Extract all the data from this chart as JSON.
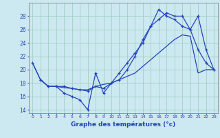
{
  "xlabel": "Graphe des températures (°c)",
  "background_color": "#cce8f0",
  "grid_color": "#99ccbb",
  "line_color": "#2244bb",
  "ylim": [
    13.5,
    30.0
  ],
  "xlim": [
    -0.5,
    23.5
  ],
  "yticks": [
    14,
    16,
    18,
    20,
    22,
    24,
    26,
    28
  ],
  "xticks": [
    0,
    1,
    2,
    3,
    4,
    5,
    6,
    7,
    8,
    9,
    10,
    11,
    12,
    13,
    14,
    15,
    16,
    17,
    18,
    19,
    20,
    21,
    22,
    23
  ],
  "line1_x": [
    0,
    1,
    2,
    3,
    4,
    5,
    6,
    7,
    8,
    9,
    10,
    11,
    12,
    13,
    14,
    15,
    16,
    17,
    18,
    19,
    20,
    21,
    22,
    23
  ],
  "line1_y": [
    21.0,
    18.5,
    17.5,
    17.5,
    16.5,
    16.0,
    15.5,
    14.0,
    19.5,
    16.5,
    18.0,
    18.5,
    20.0,
    22.0,
    24.5,
    26.5,
    29.0,
    28.0,
    27.5,
    26.5,
    26.0,
    23.0,
    21.0,
    20.0
  ],
  "line2_x": [
    0,
    1,
    2,
    3,
    4,
    5,
    6,
    7,
    8,
    9,
    10,
    11,
    12,
    13,
    14,
    15,
    16,
    17,
    18,
    19,
    20,
    21,
    22,
    23
  ],
  "line2_y": [
    21.0,
    18.5,
    17.5,
    17.5,
    17.3,
    17.2,
    17.0,
    17.0,
    17.5,
    17.8,
    18.0,
    18.5,
    19.0,
    19.5,
    20.5,
    21.5,
    22.5,
    23.5,
    24.5,
    25.2,
    25.0,
    19.5,
    20.0,
    20.0
  ],
  "line3_x": [
    1,
    2,
    3,
    4,
    5,
    6,
    7,
    8,
    9,
    10,
    11,
    12,
    13,
    14,
    15,
    16,
    17,
    18,
    19,
    20,
    21,
    22,
    23
  ],
  "line3_y": [
    18.5,
    17.5,
    17.5,
    17.5,
    17.2,
    17.0,
    16.8,
    17.5,
    17.2,
    18.0,
    19.5,
    21.0,
    22.5,
    24.0,
    26.5,
    27.5,
    28.5,
    28.0,
    28.0,
    26.0,
    28.0,
    23.0,
    20.0
  ]
}
